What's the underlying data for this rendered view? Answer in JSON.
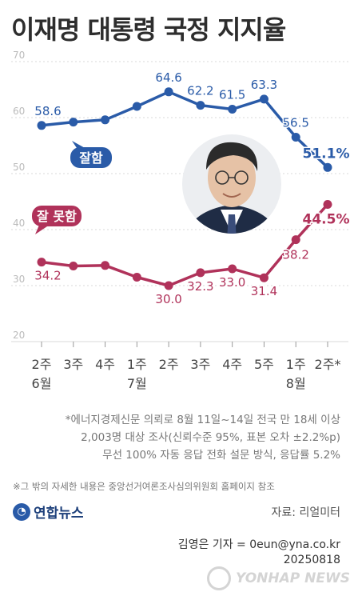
{
  "title": "이재명 대통령 국정 지지율",
  "chart_data": {
    "type": "line",
    "ylim": [
      20,
      70
    ],
    "yticks": [
      20,
      30,
      40,
      50,
      60,
      70
    ],
    "categories": [
      "2주",
      "3주",
      "4주",
      "1주",
      "2주",
      "3주",
      "4주",
      "5주",
      "1주",
      "2주*"
    ],
    "month_labels": [
      {
        "index": 0,
        "label": "6월"
      },
      {
        "index": 3,
        "label": "7월"
      },
      {
        "index": 8,
        "label": "8월"
      }
    ],
    "series": [
      {
        "name": "잘함",
        "color": "#2a5ba8",
        "values": [
          58.6,
          59.2,
          59.6,
          62.0,
          64.6,
          62.2,
          61.5,
          63.3,
          56.5,
          51.1
        ],
        "labels": [
          "58.6",
          null,
          null,
          null,
          "64.6",
          "62.2",
          "61.5",
          "63.3",
          "56.5",
          "51.1%"
        ]
      },
      {
        "name": "잘 못함",
        "color": "#b0325a",
        "values": [
          34.2,
          33.5,
          33.6,
          31.5,
          30.0,
          32.3,
          33.0,
          31.4,
          38.2,
          44.5
        ],
        "labels": [
          "34.2",
          null,
          null,
          null,
          "30.0",
          "32.3",
          "33.0",
          "31.4",
          "38.2",
          "44.5%"
        ]
      }
    ]
  },
  "notes": [
    "*에너지경제신문 의뢰로 8월 11일~14일 전국 만 18세 이상",
    "2,003명 대상 조사(신뢰수준 95%, 표본 오차 ±2.2%p)",
    "무선 100% 자동 응답 전화 설문 방식, 응답률 5.2%"
  ],
  "footnote": "※그 밖의 자세한 내용은 중앙선거여론조사심의위원회 홈페이지 참조",
  "logo_text": "연합뉴스",
  "source": "자료: 리얼미터",
  "reporter": "김영은 기자 = 0eun@yna.co.kr",
  "date": "20250818",
  "watermark": "YONHAP NEWS"
}
